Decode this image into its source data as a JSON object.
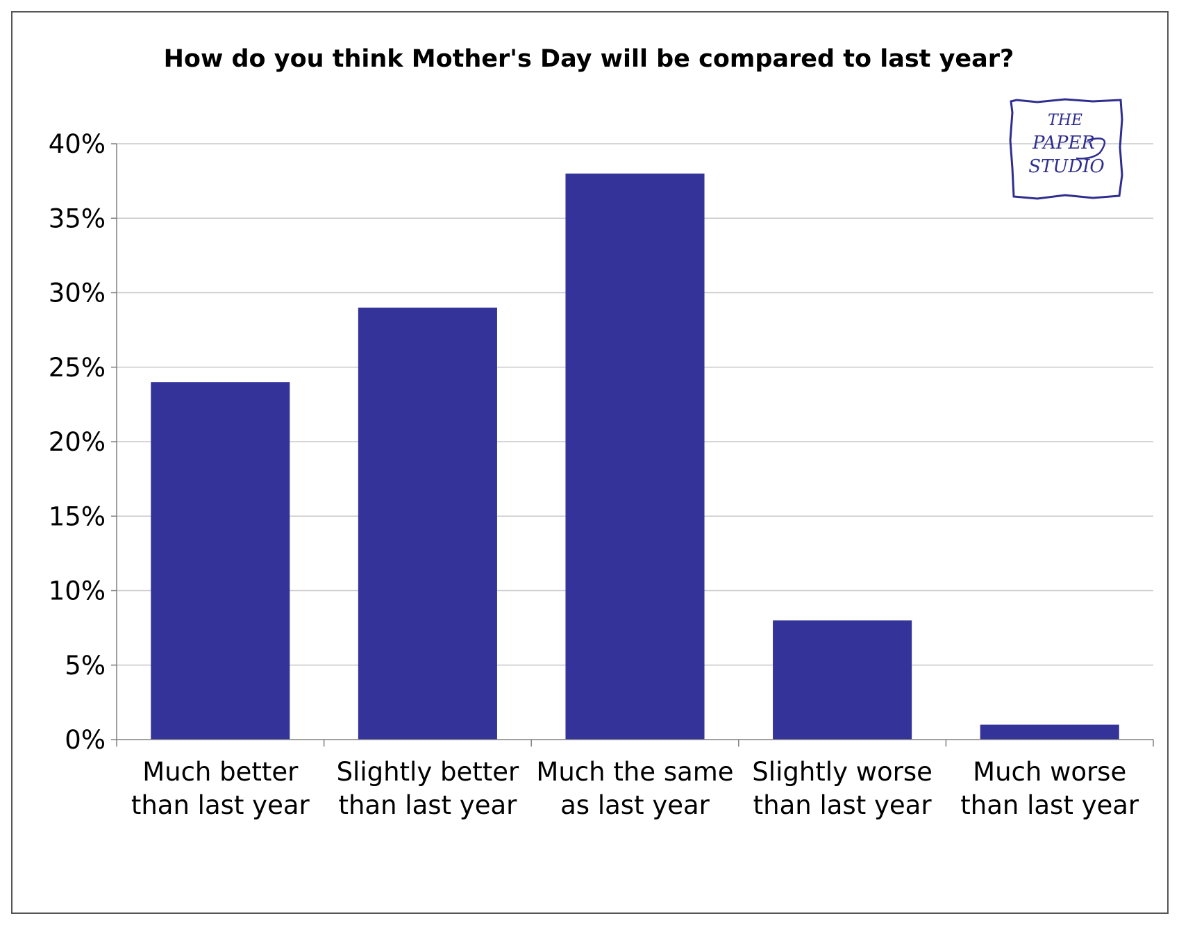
{
  "chart_data": {
    "type": "bar",
    "title": "How do you think Mother's Day will be compared to last year?",
    "xlabel": "",
    "ylabel": "",
    "categories": [
      [
        "Much better",
        "than last year"
      ],
      [
        "Slightly better",
        "than last year"
      ],
      [
        "Much the same",
        "as last year"
      ],
      [
        "Slightly worse",
        "than last year"
      ],
      [
        "Much worse",
        "than last year"
      ]
    ],
    "values": [
      24,
      29,
      38,
      8,
      1
    ],
    "ylim": [
      0,
      40
    ],
    "yticks": [
      0,
      5,
      10,
      15,
      20,
      25,
      30,
      35,
      40
    ],
    "ytick_format": "%",
    "grid": true,
    "legend": "none",
    "bar_color": "#333399",
    "grid_color": "#c8c8c8"
  },
  "logo": {
    "lines": [
      "THE",
      "PAPER",
      "STUDIO"
    ],
    "color": "#2f2e8f"
  }
}
